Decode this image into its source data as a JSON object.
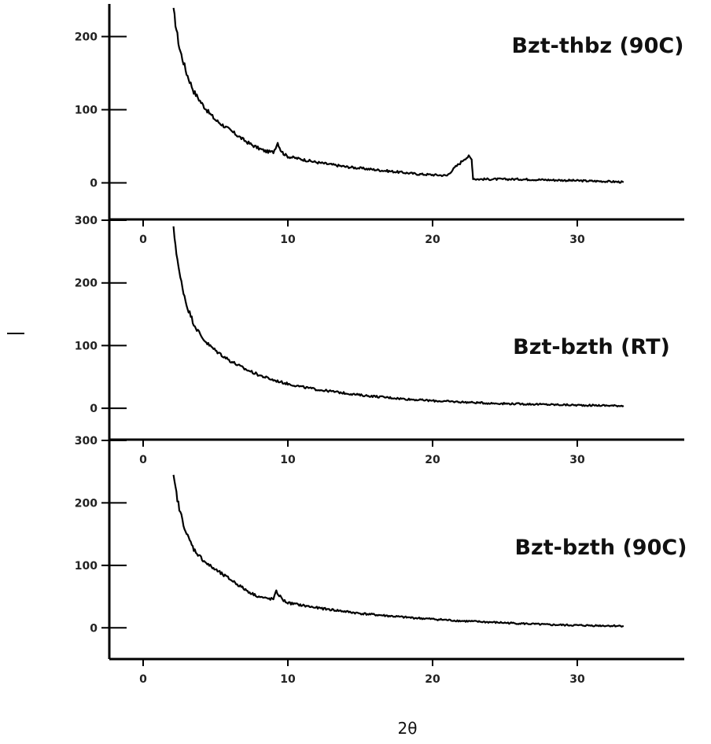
{
  "chart_data": [
    {
      "type": "line",
      "title": "Bzt-thbz (90C)",
      "xlabel": "2θ",
      "ylabel": "I",
      "xlim": [
        -2,
        37
      ],
      "ylim": [
        -50,
        250
      ],
      "xticks": [
        0,
        10,
        20,
        30
      ],
      "yticks": [
        0,
        100,
        200
      ],
      "series": [
        {
          "x": [
            2.1,
            2.5,
            3,
            3.5,
            4,
            4.5,
            5,
            5.5,
            6,
            6.5,
            7,
            7.5,
            8,
            8.5,
            9,
            9.3,
            9.5,
            9.7,
            10,
            11,
            12,
            13,
            14,
            15,
            16,
            17,
            18,
            19,
            20,
            21,
            21.3,
            21.6,
            21.9,
            22.2,
            22.5,
            22.7,
            22.8,
            23,
            24,
            26,
            28,
            30,
            32,
            33.2
          ],
          "y": [
            235,
            185,
            150,
            125,
            110,
            97,
            86,
            79,
            72,
            65,
            58,
            52,
            47,
            43,
            42,
            55,
            45,
            40,
            36,
            32,
            28,
            25,
            22,
            20,
            18,
            16,
            14,
            12,
            11,
            10,
            16,
            22,
            27,
            33,
            36,
            32,
            6,
            5,
            5,
            5,
            4,
            3,
            2,
            1
          ]
        }
      ]
    },
    {
      "type": "line",
      "title": "Bzt-bzth (RT)",
      "xlabel": "2θ",
      "ylabel": "I",
      "xlim": [
        -2,
        37
      ],
      "ylim": [
        -50,
        300
      ],
      "xticks": [
        0,
        10,
        20,
        30
      ],
      "yticks": [
        0,
        100,
        200,
        300
      ],
      "series": [
        {
          "x": [
            2.1,
            2.5,
            3,
            3.5,
            4,
            4.5,
            5,
            5.5,
            6,
            7,
            8,
            9,
            10,
            11,
            12,
            13,
            14,
            15,
            16,
            18,
            20,
            22,
            24,
            26,
            28,
            30,
            33.2
          ],
          "y": [
            285,
            215,
            165,
            135,
            115,
            102,
            92,
            84,
            76,
            63,
            53,
            45,
            39,
            34,
            30,
            27,
            24,
            21,
            19,
            15,
            12,
            10,
            8,
            7,
            6,
            5,
            4
          ]
        }
      ]
    },
    {
      "type": "line",
      "title": "Bzt-bzth (90C)",
      "xlabel": "2θ",
      "ylabel": "I",
      "xlim": [
        -2,
        37
      ],
      "ylim": [
        -50,
        300
      ],
      "xticks": [
        0,
        10,
        20,
        30
      ],
      "yticks": [
        0,
        100,
        200,
        300
      ],
      "series": [
        {
          "x": [
            2.1,
            2.5,
            3,
            3.5,
            4,
            4.5,
            5,
            5.5,
            6,
            6.5,
            7,
            7.5,
            8,
            8.5,
            9,
            9.2,
            9.4,
            9.7,
            10,
            11,
            12,
            13,
            14,
            15,
            16,
            18,
            20,
            22,
            24,
            26,
            28,
            30,
            33.2
          ],
          "y": [
            240,
            190,
            150,
            126,
            112,
            101,
            93,
            85,
            78,
            70,
            62,
            55,
            50,
            47,
            46,
            58,
            52,
            44,
            40,
            36,
            32,
            29,
            26,
            23,
            21,
            17,
            14,
            11,
            9,
            7,
            5,
            4,
            3
          ]
        }
      ]
    }
  ]
}
